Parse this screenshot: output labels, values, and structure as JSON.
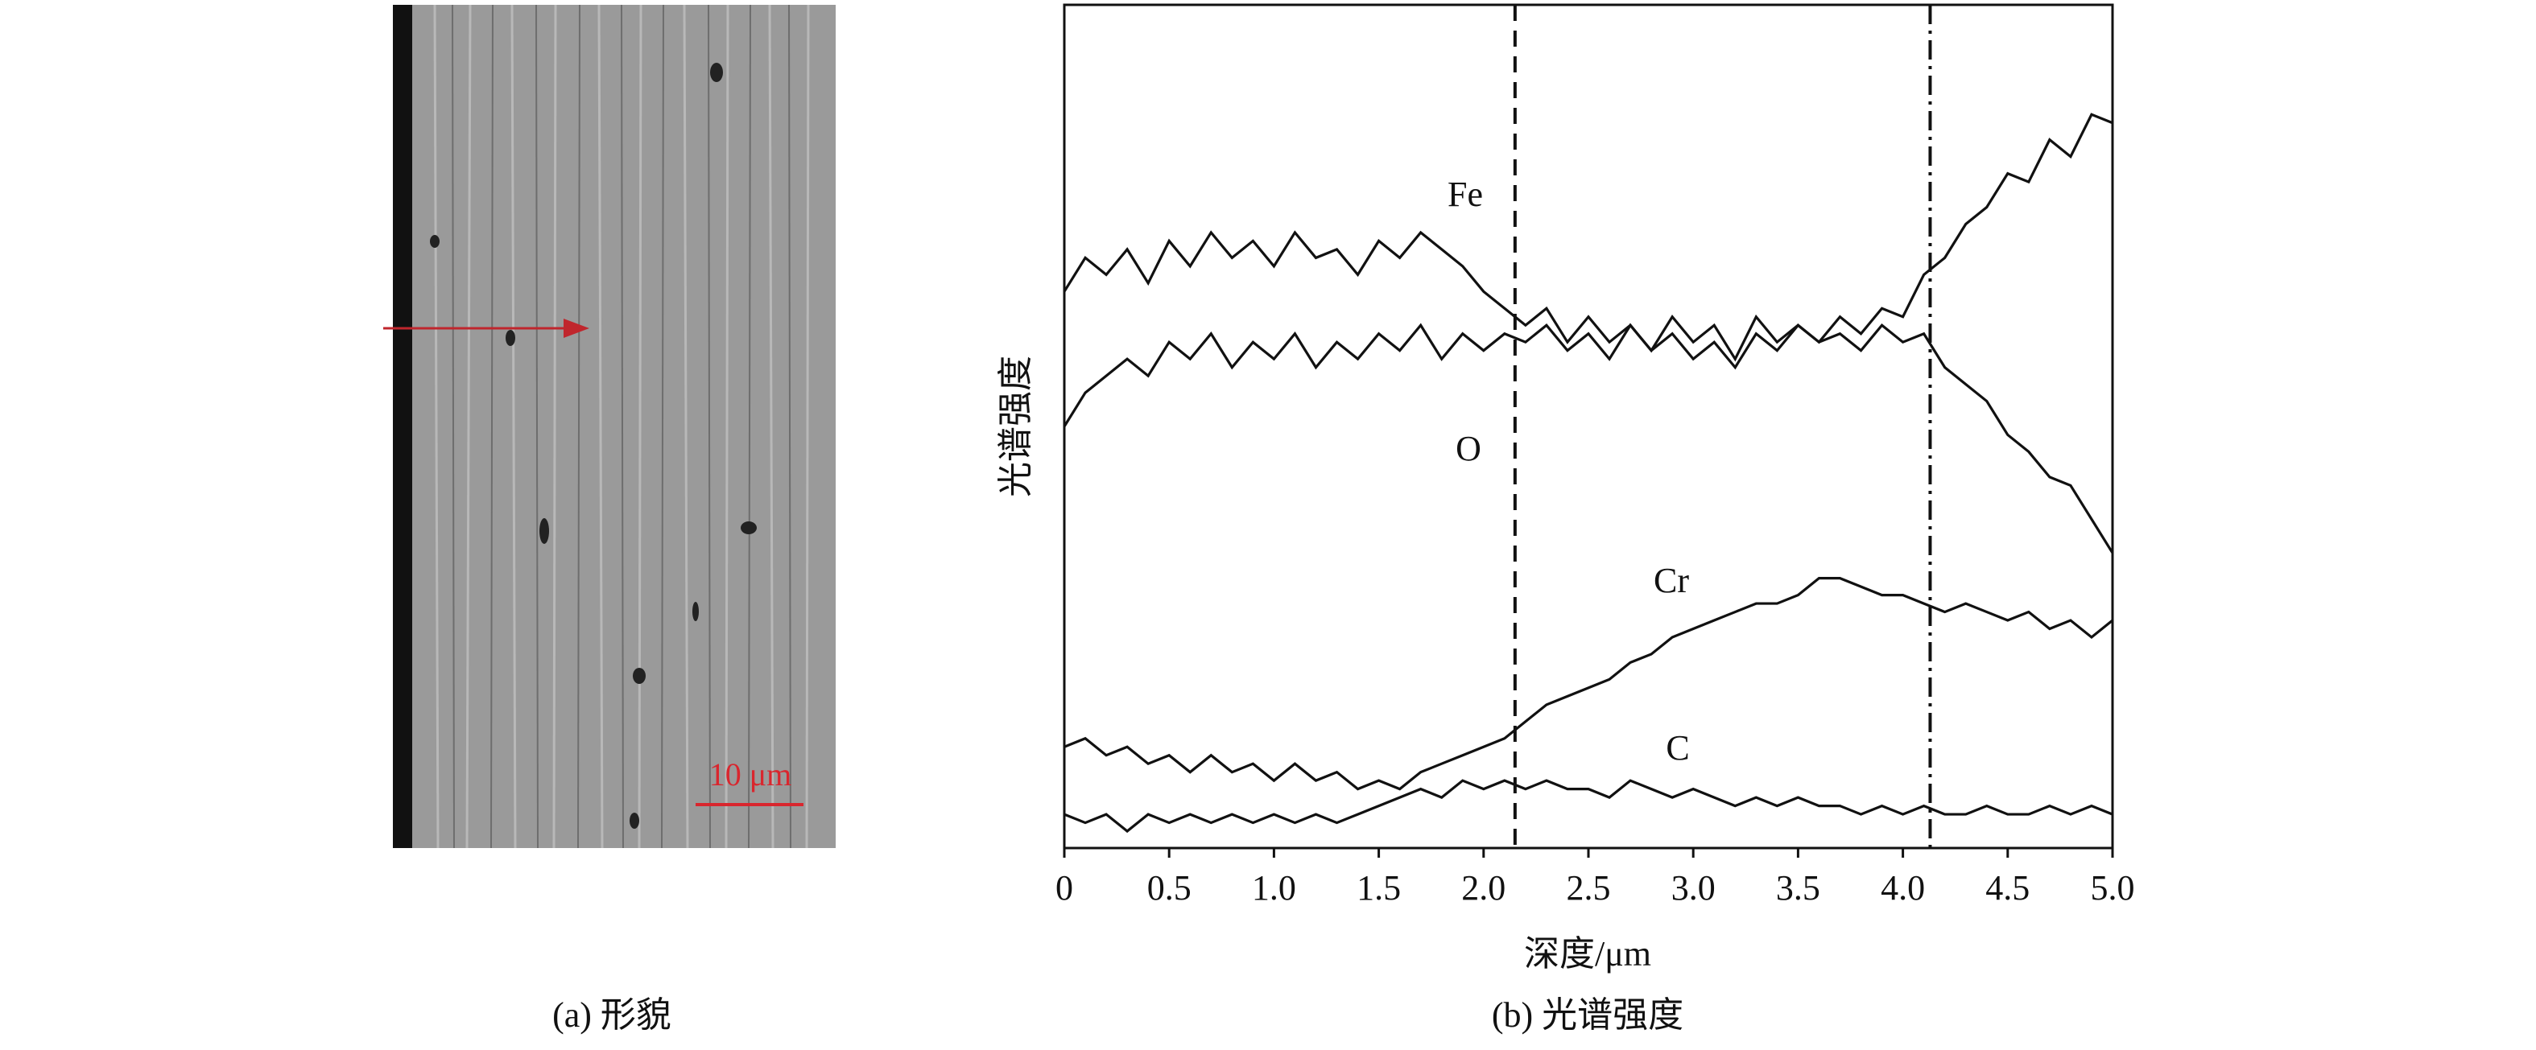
{
  "chart_data": {
    "type": "line",
    "title": "(b) 光谱强度",
    "xlabel": "深度/μm",
    "ylabel": "光谱强度",
    "x": [
      0,
      0.1,
      0.2,
      0.3,
      0.4,
      0.5,
      0.6,
      0.7,
      0.8,
      0.9,
      1,
      1.1,
      1.2,
      1.3,
      1.4,
      1.5,
      1.6,
      1.7,
      1.8,
      1.9,
      2,
      2.1,
      2.2,
      2.3,
      2.4,
      2.5,
      2.6,
      2.7,
      2.8,
      2.9,
      3,
      3.1,
      3.2,
      3.3,
      3.4,
      3.5,
      3.6,
      3.7,
      3.8,
      3.9,
      4,
      4.1,
      4.2,
      4.3,
      4.4,
      4.5,
      4.6,
      4.7,
      4.8,
      4.9,
      5
    ],
    "series": [
      {
        "name": "Fe",
        "color": "#111111",
        "values": [
          66,
          70,
          68,
          71,
          67,
          72,
          69,
          73,
          70,
          72,
          69,
          73,
          70,
          71,
          68,
          72,
          70,
          73,
          71,
          69,
          66,
          64,
          62,
          64,
          60,
          63,
          60,
          62,
          59,
          63,
          60,
          62,
          58,
          63,
          60,
          62,
          60,
          63,
          61,
          64,
          63,
          68,
          70,
          74,
          76,
          80,
          79,
          84,
          82,
          87,
          86
        ]
      },
      {
        "name": "O",
        "color": "#111111",
        "values": [
          50,
          54,
          56,
          58,
          56,
          60,
          58,
          61,
          57,
          60,
          58,
          61,
          57,
          60,
          58,
          61,
          59,
          62,
          58,
          61,
          59,
          61,
          60,
          62,
          59,
          61,
          58,
          62,
          59,
          61,
          58,
          60,
          57,
          61,
          59,
          62,
          60,
          61,
          59,
          62,
          60,
          61,
          57,
          55,
          53,
          49,
          47,
          44,
          43,
          39,
          35
        ]
      },
      {
        "name": "Cr",
        "color": "#111111",
        "values": [
          12,
          13,
          11,
          12,
          10,
          11,
          9,
          11,
          9,
          10,
          8,
          10,
          8,
          9,
          7,
          8,
          7,
          9,
          10,
          11,
          12,
          13,
          15,
          17,
          18,
          19,
          20,
          22,
          23,
          25,
          26,
          27,
          28,
          29,
          29,
          30,
          32,
          32,
          31,
          30,
          30,
          29,
          28,
          29,
          28,
          27,
          28,
          26,
          27,
          25,
          27
        ]
      },
      {
        "name": "C",
        "color": "#111111",
        "values": [
          4,
          3,
          4,
          2,
          4,
          3,
          4,
          3,
          4,
          3,
          4,
          3,
          4,
          3,
          4,
          5,
          6,
          7,
          6,
          8,
          7,
          8,
          7,
          8,
          7,
          7,
          6,
          8,
          7,
          6,
          7,
          6,
          5,
          6,
          5,
          6,
          5,
          5,
          4,
          5,
          4,
          5,
          4,
          4,
          5,
          4,
          4,
          5,
          4,
          5,
          4
        ]
      }
    ],
    "xlim": [
      0,
      5
    ],
    "ylim": [
      0,
      100
    ],
    "xticks": [
      0,
      0.5,
      {
        "value": 1,
        "label": "1.0"
      },
      1.5,
      {
        "value": 2,
        "label": "2.0"
      },
      2.5,
      {
        "value": 3,
        "label": "3.0"
      },
      3.5,
      {
        "value": 4,
        "label": "4.0"
      },
      4.5,
      {
        "value": 5,
        "label": "5.0"
      }
    ],
    "vlines": [
      {
        "x": 2.15,
        "style": "dashed"
      },
      {
        "x": 4.13,
        "style": "dashdot"
      }
    ]
  },
  "image_panel": {
    "caption": "(a) 形貌",
    "scale_bar": "10 μm"
  }
}
